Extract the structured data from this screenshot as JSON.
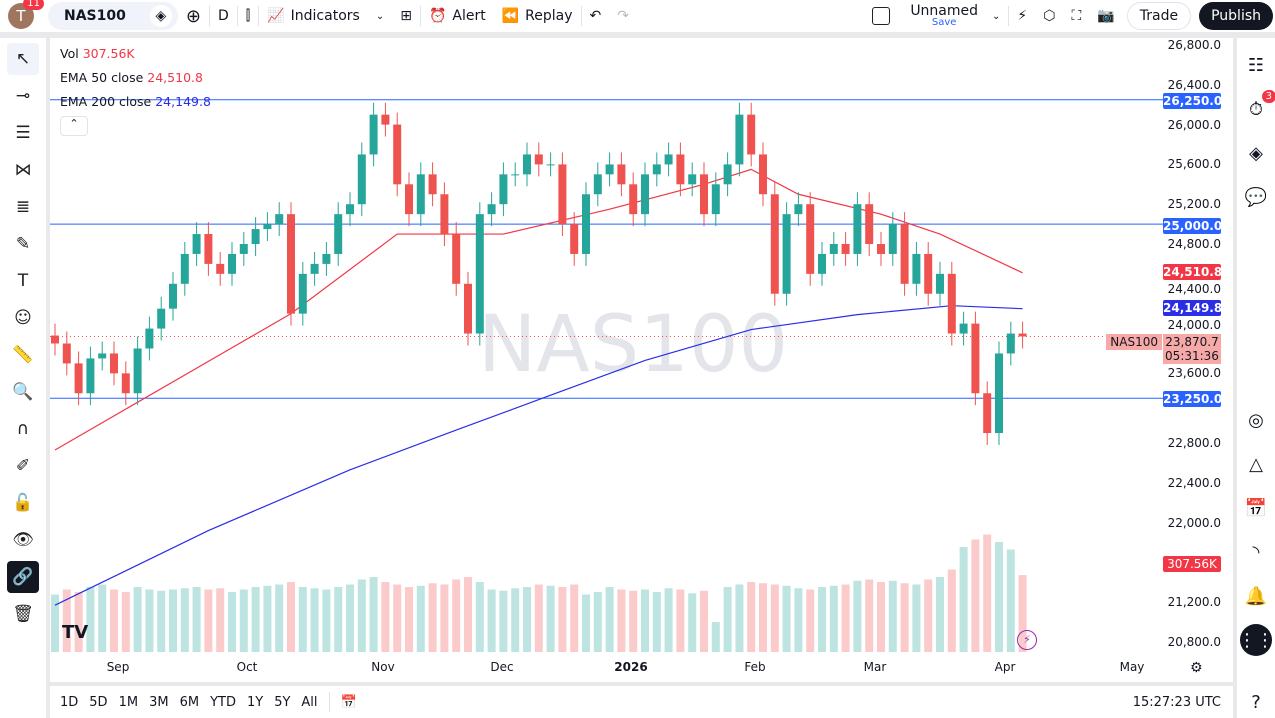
{
  "toolbar": {
    "avatar": "T",
    "avatar_badge": "11",
    "symbol": "NAS100",
    "interval": "D",
    "indicators": "Indicators",
    "alert": "Alert",
    "replay": "Replay",
    "layout_name": "Unnamed",
    "save": "Save",
    "trade": "Trade",
    "publish": "Publish"
  },
  "legend": {
    "vol_label": "Vol",
    "vol_value": "307.56K",
    "ema50_label": "EMA 50 close",
    "ema50_value": "24,510.8",
    "ema200_label": "EMA 200 close",
    "ema200_value": "24,149.8"
  },
  "watermark": "NAS100",
  "price_axis": [
    "26,800.0",
    "26,400.0",
    "26,000.0",
    "25,600.0",
    "25,200.0",
    "24,800.0",
    "24,400.0",
    "24,000.0",
    "23,600.0",
    "22,800.0",
    "22,400.0",
    "22,000.0",
    "21,200.0",
    "20,800.0"
  ],
  "tags": {
    "h1": "26,250.0",
    "h2": "25,000.0",
    "h3": "23,250.0",
    "ema50": "24,510.8",
    "ema200": "24,149.8",
    "symbol": "NAS100",
    "price": "23,870.7",
    "countdown": "05:31:36",
    "vol": "307.56K"
  },
  "time_axis": [
    "Sep",
    "Oct",
    "Nov",
    "Dec",
    "2026",
    "Feb",
    "Mar",
    "Apr",
    "May"
  ],
  "bottom": {
    "ranges": [
      "1D",
      "5D",
      "1M",
      "3M",
      "6M",
      "YTD",
      "1Y",
      "5Y",
      "All"
    ],
    "clock": "15:27:23 UTC"
  },
  "right_badge": "3",
  "colors": {
    "up": "#26a69a",
    "down": "#ef5350",
    "ema50": "#f23645",
    "ema200": "#2a2ee6",
    "hline": "#2962ff"
  },
  "chart_data": {
    "type": "candlestick",
    "price_range": [
      20800,
      26800
    ],
    "horizontal_lines": [
      26250,
      25000,
      23250
    ],
    "closes": [
      23800,
      23600,
      23300,
      23650,
      23700,
      23500,
      23300,
      23750,
      23950,
      24150,
      24400,
      24700,
      24900,
      24600,
      24500,
      24700,
      24800,
      24950,
      25000,
      25100,
      24100,
      24500,
      24600,
      24700,
      25100,
      25200,
      25700,
      26100,
      26000,
      25400,
      25100,
      25500,
      25300,
      24900,
      24400,
      23900,
      25100,
      25200,
      25500,
      25500,
      25700,
      25600,
      25600,
      25000,
      24700,
      25300,
      25500,
      25600,
      25400,
      25100,
      25500,
      25600,
      25700,
      25400,
      25500,
      25100,
      25400,
      25600,
      26100,
      25700,
      25300,
      24300,
      25100,
      25200,
      24500,
      24700,
      24800,
      24700,
      25200,
      24800,
      24700,
      25000,
      24400,
      24700,
      24300,
      24500,
      23900,
      24000,
      23300,
      22900,
      23700,
      23900,
      23870.7
    ],
    "volume_k": [
      230,
      250,
      240,
      260,
      270,
      250,
      240,
      260,
      250,
      245,
      250,
      255,
      260,
      250,
      255,
      240,
      250,
      260,
      265,
      270,
      280,
      260,
      255,
      250,
      260,
      270,
      290,
      300,
      280,
      270,
      260,
      265,
      275,
      270,
      290,
      300,
      280,
      250,
      245,
      255,
      260,
      270,
      265,
      260,
      270,
      230,
      240,
      260,
      250,
      245,
      250,
      240,
      255,
      250,
      235,
      245,
      120,
      260,
      270,
      280,
      275,
      270,
      265,
      255,
      250,
      260,
      265,
      270,
      285,
      290,
      280,
      285,
      275,
      270,
      290,
      300,
      330,
      420,
      450,
      470,
      440,
      410,
      307.56
    ],
    "ema50": [
      [
        0,
        22730
      ],
      [
        20,
        24100
      ],
      [
        29,
        24900
      ],
      [
        38,
        24900
      ],
      [
        47,
        25150
      ],
      [
        55,
        25400
      ],
      [
        59,
        25550
      ],
      [
        63,
        25300
      ],
      [
        70,
        25100
      ],
      [
        75,
        24900
      ],
      [
        82,
        24510.8
      ]
    ],
    "ema200": [
      [
        0,
        21170
      ],
      [
        13,
        21920
      ],
      [
        25,
        22530
      ],
      [
        34,
        22930
      ],
      [
        42,
        23280
      ],
      [
        50,
        23630
      ],
      [
        59,
        23940
      ],
      [
        68,
        24090
      ],
      [
        76,
        24180
      ],
      [
        82,
        24149.8
      ]
    ]
  }
}
